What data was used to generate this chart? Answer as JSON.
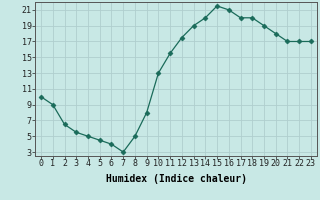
{
  "x": [
    0,
    1,
    2,
    3,
    4,
    5,
    6,
    7,
    8,
    9,
    10,
    11,
    12,
    13,
    14,
    15,
    16,
    17,
    18,
    19,
    20,
    21,
    22,
    23
  ],
  "y": [
    10,
    9,
    6.5,
    5.5,
    5,
    4.5,
    4,
    3,
    5,
    8,
    13,
    15.5,
    17.5,
    19,
    20,
    21.5,
    21,
    20,
    20,
    19,
    18,
    17,
    17,
    17
  ],
  "xlabel": "Humidex (Indice chaleur)",
  "xlim_min": -0.5,
  "xlim_max": 23.5,
  "ylim_min": 2.5,
  "ylim_max": 22.0,
  "yticks": [
    3,
    5,
    7,
    9,
    11,
    13,
    15,
    17,
    19,
    21
  ],
  "xticks": [
    0,
    1,
    2,
    3,
    4,
    5,
    6,
    7,
    8,
    9,
    10,
    11,
    12,
    13,
    14,
    15,
    16,
    17,
    18,
    19,
    20,
    21,
    22,
    23
  ],
  "line_color": "#1a6b5a",
  "marker": "D",
  "marker_size": 2.5,
  "bg_color": "#c8e8e5",
  "grid_color": "#b0cece",
  "axis_label_fontsize": 7,
  "tick_fontsize": 6
}
